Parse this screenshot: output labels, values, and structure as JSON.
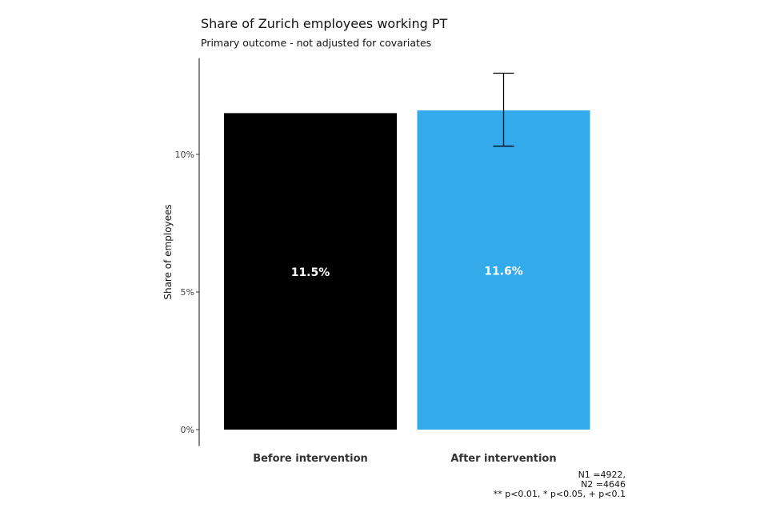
{
  "chart_data": {
    "type": "bar",
    "title": "Share of Zurich employees working PT",
    "subtitle": "Primary outcome - not adjusted for covariates",
    "xlabel": "",
    "ylabel": "Share of employees",
    "ylim": [
      -0.6,
      13.5
    ],
    "yticks": [
      0,
      5,
      10
    ],
    "ytick_labels": [
      "0%",
      "5%",
      "10%"
    ],
    "categories": [
      "Before intervention",
      "After intervention"
    ],
    "values": [
      11.5,
      11.6
    ],
    "data_labels": [
      "11.5%",
      "11.6%"
    ],
    "colors": [
      "#000000",
      "#33abeb"
    ],
    "error_bars": [
      null,
      {
        "low": 10.3,
        "high": 12.95
      }
    ],
    "grid": false
  },
  "notes": {
    "n1": "N1 =4922,",
    "n2": "N2 =4646",
    "significance": "** p<0.01, * p<0.05, + p<0.1"
  }
}
